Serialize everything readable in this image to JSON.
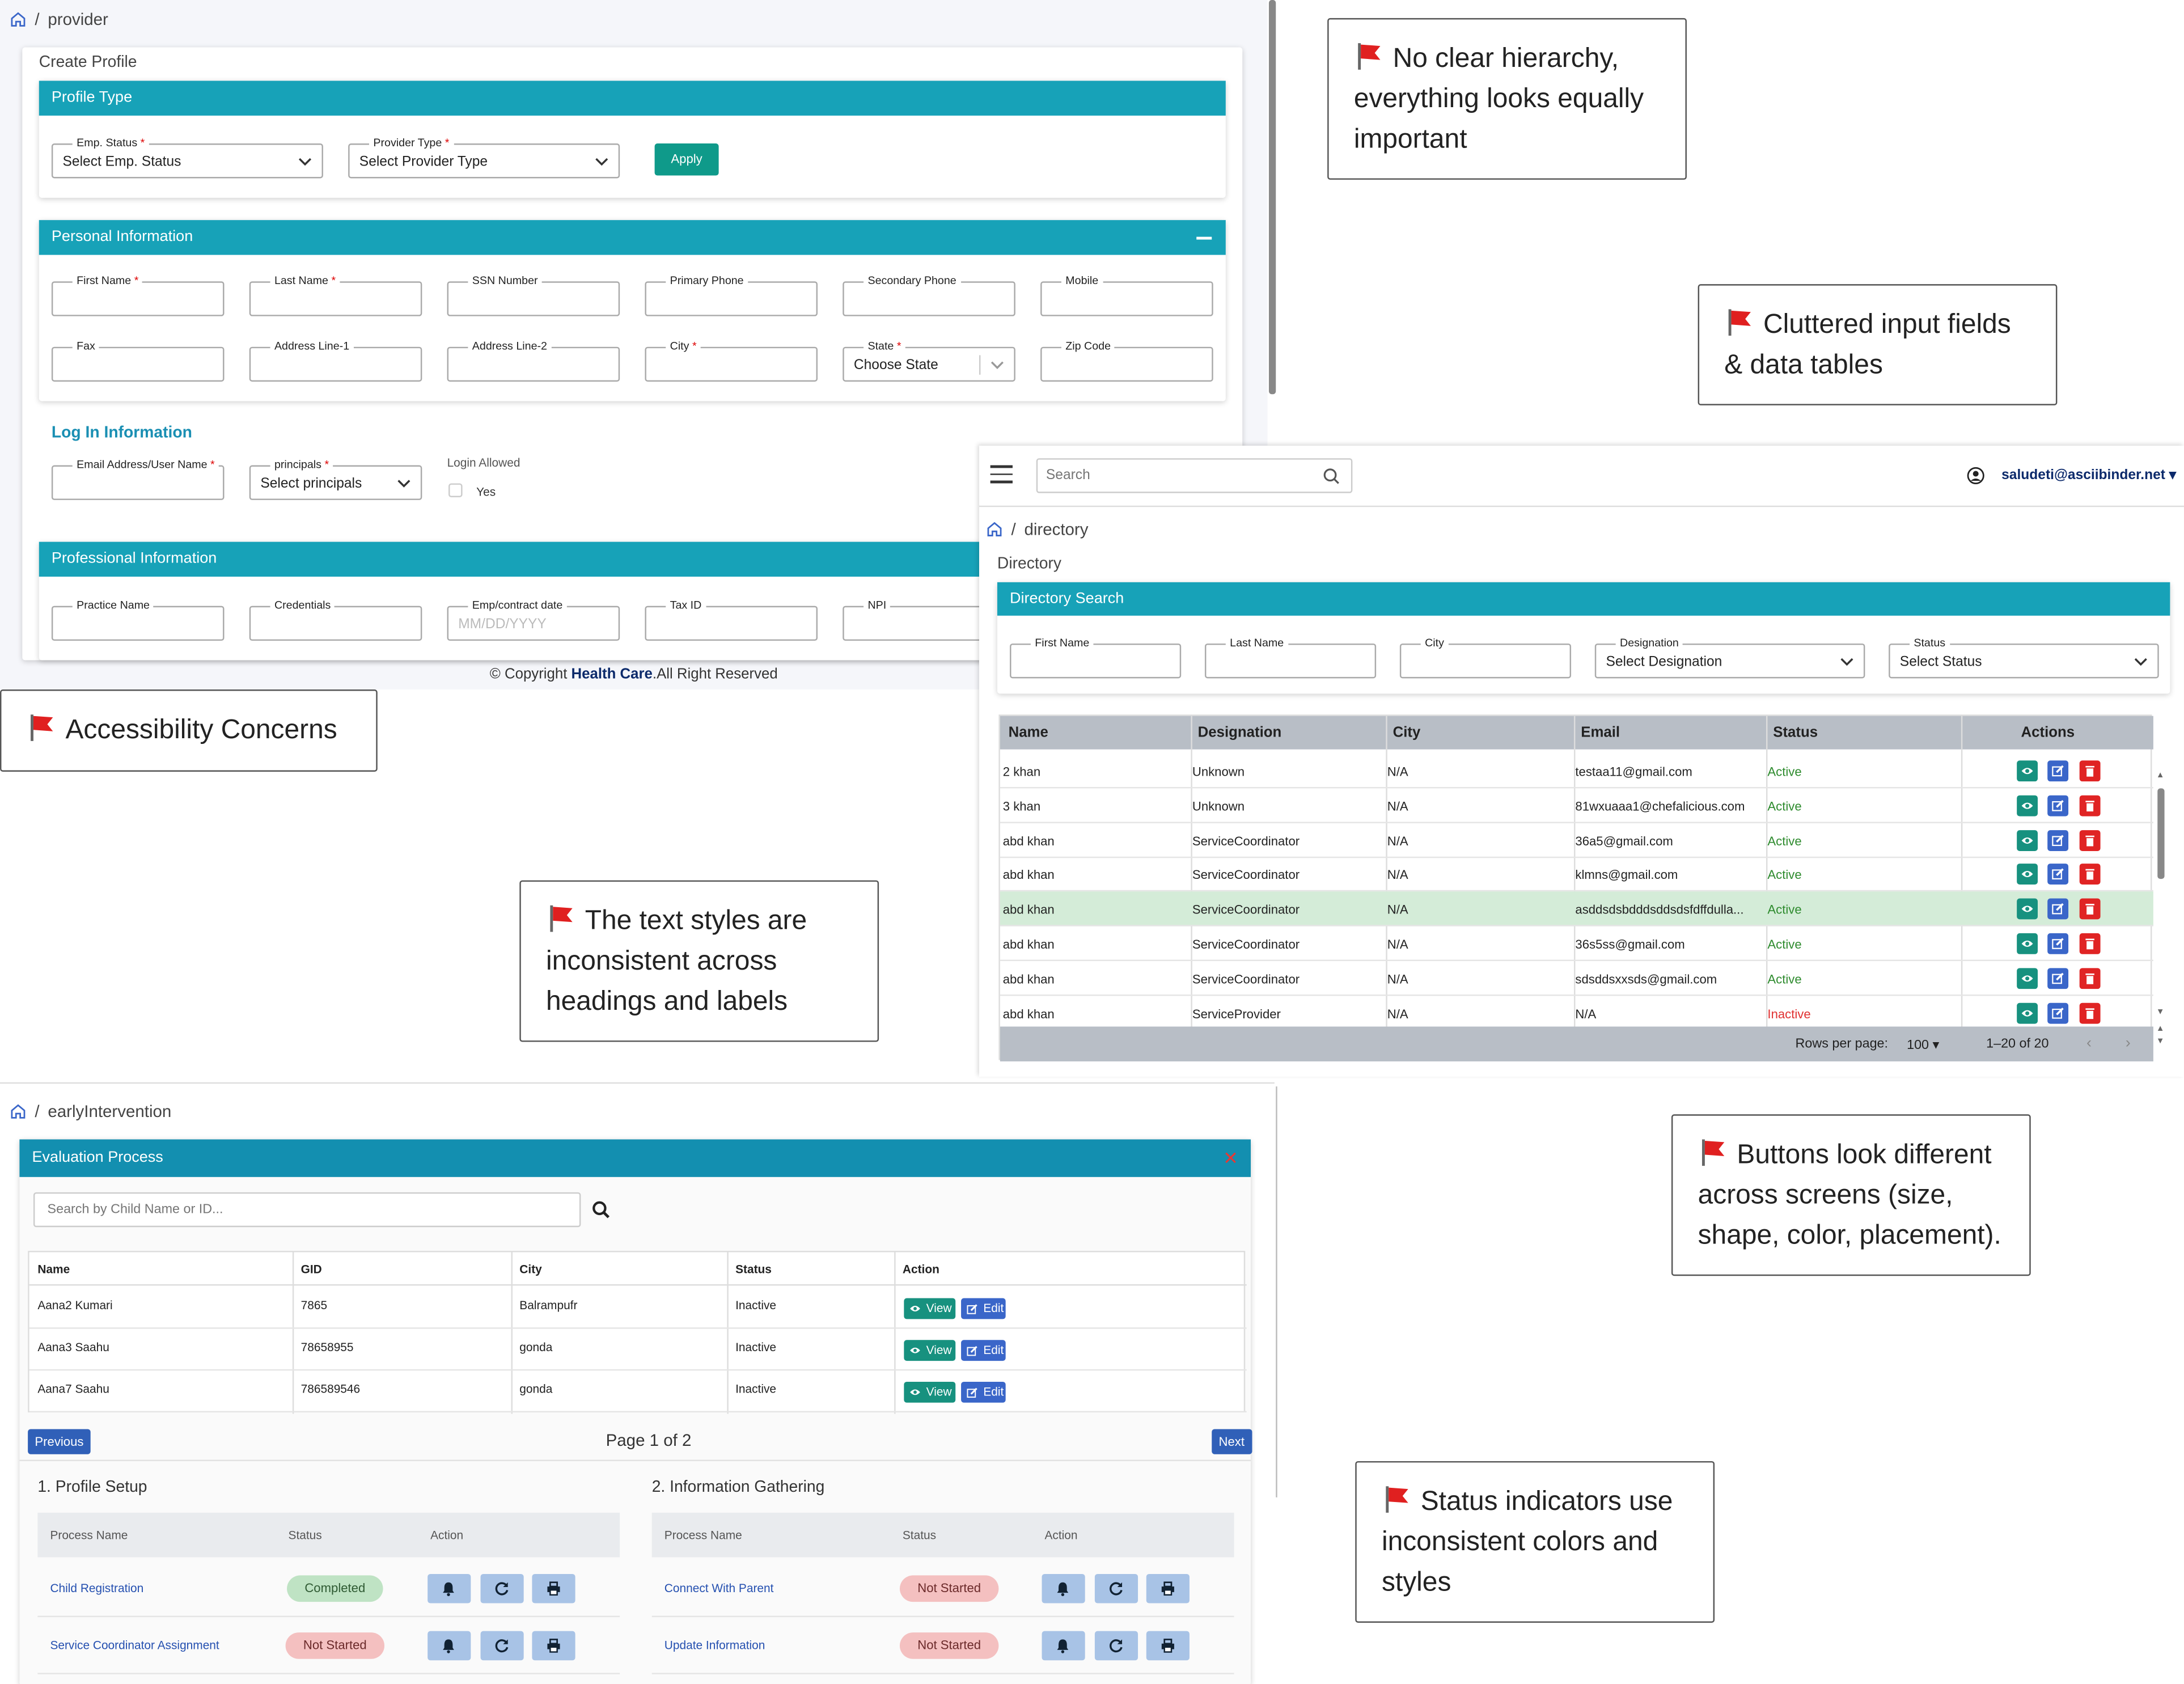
{
  "provider": {
    "breadcrumb": "provider",
    "breadcrumb_sep": "/",
    "page_title": "Create Profile",
    "profile_type": {
      "title": "Profile Type",
      "emp_status_label": "Emp. Status",
      "emp_status_value": "Select Emp. Status",
      "provider_type_label": "Provider Type",
      "provider_type_value": "Select Provider Type",
      "apply": "Apply"
    },
    "personal": {
      "title": "Personal Information",
      "fields": [
        "First Name",
        "Last Name",
        "SSN Number",
        "Primary Phone",
        "Secondary Phone",
        "Mobile",
        "Fax",
        "Address Line-1",
        "Address Line-2",
        "City",
        "State",
        "Zip Code"
      ],
      "state_value": "Choose State"
    },
    "login": {
      "title": "Log In Information",
      "email_label": "Email Address/User Name",
      "principals_label": "principals",
      "principals_value": "Select principals",
      "login_allowed": "Login Allowed",
      "yes": "Yes"
    },
    "professional": {
      "title": "Professional Information",
      "fields": [
        "Practice Name",
        "Credentials",
        "Emp/contract date",
        "Tax ID",
        "NPI"
      ],
      "date_placeholder": "MM/DD/YYYY"
    },
    "footer": {
      "pre": "© Copyright ",
      "brand": "Health Care",
      "post": ".All Right Reserved"
    }
  },
  "directory": {
    "search_placeholder": "Search",
    "user": "saludeti@asciibinder.net",
    "breadcrumb": "directory",
    "page_title": "Directory",
    "panel_title": "Directory Search",
    "filters": {
      "first_name": "First Name",
      "last_name": "Last Name",
      "city": "City",
      "designation_label": "Designation",
      "designation_value": "Select Designation",
      "status_label": "Status",
      "status_value": "Select Status"
    },
    "columns": [
      "Name",
      "Designation",
      "City",
      "Email",
      "Status",
      "Actions"
    ],
    "rows": [
      {
        "name": "2 khan",
        "designation": "Unknown",
        "city": "N/A",
        "email": "testaa11@gmail.com",
        "status": "Active"
      },
      {
        "name": "3 khan",
        "designation": "Unknown",
        "city": "N/A",
        "email": "81wxuaaa1@chefalicious.com",
        "status": "Active"
      },
      {
        "name": "abd khan",
        "designation": "ServiceCoordinator",
        "city": "N/A",
        "email": "36a5@gmail.com",
        "status": "Active"
      },
      {
        "name": "abd khan",
        "designation": "ServiceCoordinator",
        "city": "N/A",
        "email": "klmns@gmail.com",
        "status": "Active"
      },
      {
        "name": "abd khan",
        "designation": "ServiceCoordinator",
        "city": "N/A",
        "email": "asddsdsbdddsddsdsfdffdulla...",
        "status": "Active"
      },
      {
        "name": "abd khan",
        "designation": "ServiceCoordinator",
        "city": "N/A",
        "email": "36s5ss@gmail.com",
        "status": "Active"
      },
      {
        "name": "abd khan",
        "designation": "ServiceCoordinator",
        "city": "N/A",
        "email": "sdsddsxxsds@gmail.com",
        "status": "Active"
      },
      {
        "name": "abd khan",
        "designation": "ServiceProvider",
        "city": "N/A",
        "email": "N/A",
        "status": "Inactive"
      }
    ],
    "rows_per_page_label": "Rows per page:",
    "rows_per_page": "100",
    "range": "1–20 of 20"
  },
  "early": {
    "breadcrumb": "earlyIntervention",
    "panel_title": "Evaluation Process",
    "search_placeholder": "Search by Child Name or ID...",
    "columns": [
      "Name",
      "GID",
      "City",
      "Status",
      "Action"
    ],
    "rows": [
      {
        "name": "Aana2 Kumari",
        "gid": "7865",
        "city": "Balrampufr",
        "status": "Inactive"
      },
      {
        "name": "Aana3 Saahu",
        "gid": "78658955",
        "city": "gonda",
        "status": "Inactive"
      },
      {
        "name": "Aana7 Saahu",
        "gid": "786589546",
        "city": "gonda",
        "status": "Inactive"
      }
    ],
    "view": "View",
    "edit": "Edit",
    "previous": "Previous",
    "next": "Next",
    "page_info": "Page 1 of 2",
    "section1": {
      "title": "1. Profile Setup",
      "cols": [
        "Process Name",
        "Status",
        "Action"
      ],
      "rows": [
        {
          "name": "Child Registration",
          "status": "Completed"
        },
        {
          "name": "Service Coordinator Assignment",
          "status": "Not Started"
        }
      ]
    },
    "section2": {
      "title": "2. Information Gathering",
      "cols": [
        "Process Name",
        "Status",
        "Action"
      ],
      "rows": [
        {
          "name": "Connect With Parent",
          "status": "Not Started"
        },
        {
          "name": "Update Information",
          "status": "Not Started"
        }
      ]
    }
  },
  "callouts": {
    "hierarchy": "No clear hierarchy, everything looks equally important",
    "cluttered": "Cluttered input fields & data tables",
    "accessibility": "Accessibility Concerns",
    "text_styles": "The text styles are inconsistent across headings and labels",
    "buttons": "Buttons look different across screens (size, shape, color, placement).",
    "status": "Status indicators use inconsistent colors and styles"
  },
  "colors": {
    "teal_header": "#17a2b8",
    "apply_green": "#0f9a8a",
    "active_green": "#2e8b2e",
    "inactive_red": "#e03030",
    "completed_pill": "#bfe3c4",
    "not_started_pill": "#f4c0c0",
    "action_blue": "#3a66c9",
    "action_red": "#e02424"
  }
}
